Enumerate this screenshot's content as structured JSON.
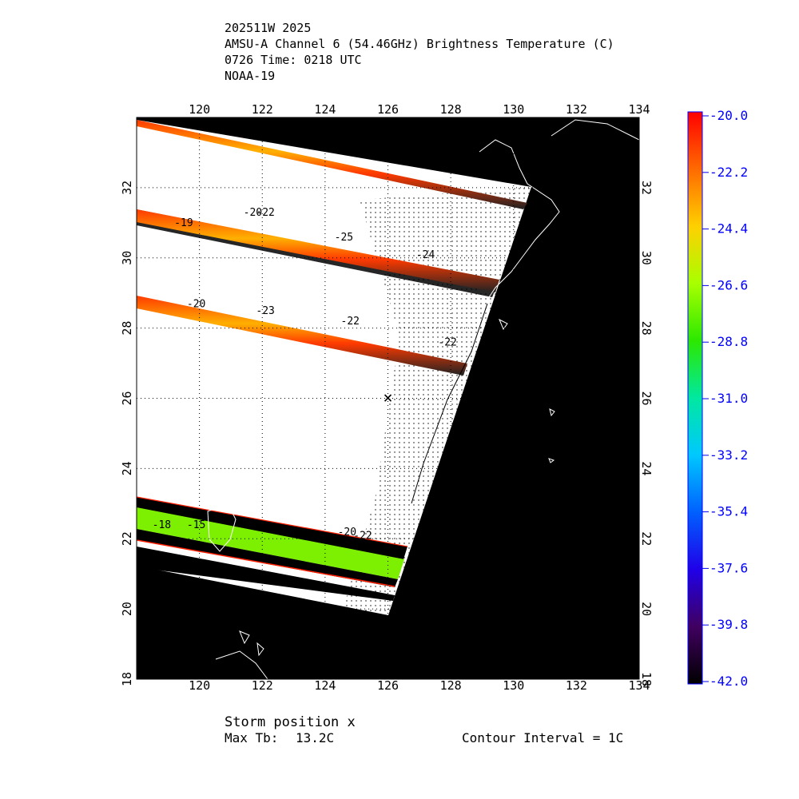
{
  "header": {
    "storm_id": "202511W 2025",
    "product": "AMSU-A Channel 6 (54.46GHz) Brightness Temperature (C)",
    "time": "0726 Time: 0218 UTC",
    "satellite": "NOAA-19"
  },
  "map": {
    "lon_ticks": [
      "120",
      "122",
      "124",
      "126",
      "128",
      "130",
      "132",
      "134"
    ],
    "lat_ticks": [
      "18",
      "20",
      "22",
      "24",
      "26",
      "28",
      "30",
      "32"
    ],
    "lon_range": [
      118,
      134
    ],
    "lat_range": [
      18,
      34
    ],
    "storm_marker": {
      "lon": 126.0,
      "lat": 26.0,
      "symbol": "×"
    },
    "contour_labels": [
      {
        "text": "-20",
        "lon": 121.4,
        "lat": 31.2
      },
      {
        "text": "-22",
        "lon": 121.8,
        "lat": 31.2
      },
      {
        "text": "-19",
        "lon": 119.2,
        "lat": 30.9
      },
      {
        "text": "-25",
        "lon": 124.3,
        "lat": 30.5
      },
      {
        "text": "-24",
        "lon": 126.9,
        "lat": 30.0
      },
      {
        "text": "-20",
        "lon": 119.6,
        "lat": 28.6
      },
      {
        "text": "-23",
        "lon": 121.8,
        "lat": 28.4
      },
      {
        "text": "-22",
        "lon": 124.5,
        "lat": 28.1
      },
      {
        "text": "-22",
        "lon": 127.6,
        "lat": 27.5
      },
      {
        "text": "-18",
        "lon": 118.5,
        "lat": 22.3
      },
      {
        "text": "-15",
        "lon": 119.6,
        "lat": 22.3
      },
      {
        "text": "-20",
        "lon": 124.4,
        "lat": 22.1
      },
      {
        "text": "-22",
        "lon": 124.9,
        "lat": 22.0
      }
    ]
  },
  "colorbar": {
    "labels": [
      "-20.0",
      "-22.2",
      "-24.4",
      "-26.6",
      "-28.8",
      "-31.0",
      "-33.2",
      "-35.4",
      "-37.6",
      "-39.8",
      "-42.0"
    ],
    "colors": [
      "#ff0000",
      "#ff6a00",
      "#ffd000",
      "#a8ff00",
      "#2ce800",
      "#00e8a0",
      "#00c8ff",
      "#0060ff",
      "#2000e8",
      "#400060",
      "#000000"
    ],
    "label_color": "#0000ff"
  },
  "footer": {
    "storm_position": "Storm position x",
    "max_tb_label": "Max Tb:",
    "max_tb_value": "13.2C",
    "contour_interval": "Contour Interval = 1C"
  }
}
